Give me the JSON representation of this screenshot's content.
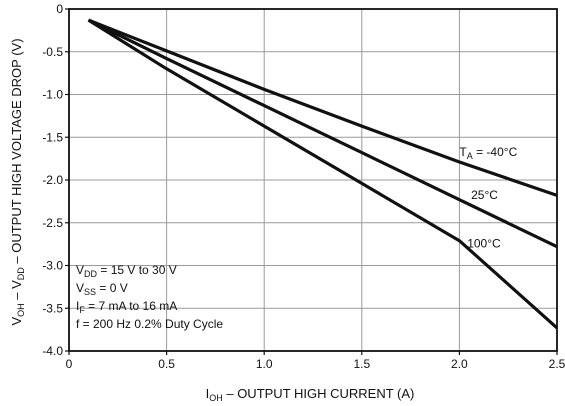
{
  "chart_data": {
    "type": "line",
    "xlabel": {
      "main": "I",
      "sub": "OH",
      "rest": " – OUTPUT HIGH CURRENT (A)"
    },
    "ylabel": {
      "p1": "V",
      "s1": "OH",
      "p2": " – V",
      "s2": "DD",
      "p3": " – OUTPUT HIGH VOLTAGE DROP (V)"
    },
    "xlim": [
      0,
      2.5
    ],
    "ylim": [
      -4.0,
      0
    ],
    "x_ticks": [
      "0",
      "0.5",
      "1.0",
      "1.5",
      "2.0",
      "2.5"
    ],
    "x_tick_values": [
      0,
      0.5,
      1.0,
      1.5,
      2.0,
      2.5
    ],
    "y_ticks": [
      "0",
      "-0.5",
      "-1.0",
      "-1.5",
      "-2.0",
      "-2.5",
      "-3.0",
      "-3.5",
      "-4.0"
    ],
    "y_tick_values": [
      0,
      -0.5,
      -1.0,
      -1.5,
      -2.0,
      -2.5,
      -3.0,
      -3.5,
      -4.0
    ],
    "grid": true,
    "series": [
      {
        "name_main": "T",
        "name_sub": "A",
        "name_rest": " = -40°C",
        "label_at": [
          2.0,
          -1.72
        ],
        "points": [
          [
            0.1,
            -0.13
          ],
          [
            0.5,
            -0.49
          ],
          [
            1.0,
            -0.94
          ],
          [
            1.5,
            -1.37
          ],
          [
            2.0,
            -1.79
          ],
          [
            2.5,
            -2.18
          ]
        ]
      },
      {
        "name_main": "25°C",
        "name_sub": "",
        "name_rest": "",
        "label_at": [
          2.06,
          -2.22
        ],
        "points": [
          [
            0.1,
            -0.13
          ],
          [
            0.5,
            -0.58
          ],
          [
            1.0,
            -1.13
          ],
          [
            1.5,
            -1.68
          ],
          [
            2.0,
            -2.23
          ],
          [
            2.5,
            -2.78
          ]
        ]
      },
      {
        "name_main": "100°C",
        "name_sub": "",
        "name_rest": "",
        "label_at": [
          2.04,
          -2.79
        ],
        "points": [
          [
            0.1,
            -0.13
          ],
          [
            0.5,
            -0.7
          ],
          [
            1.0,
            -1.37
          ],
          [
            1.5,
            -2.04
          ],
          [
            2.0,
            -2.71
          ],
          [
            2.5,
            -3.73
          ]
        ]
      }
    ],
    "conditions": [
      {
        "main": "V",
        "sub": "DD",
        "rest": " = 15 V to 30 V"
      },
      {
        "main": "V",
        "sub": "SS",
        "rest": " = 0 V"
      },
      {
        "main": "I",
        "sub": "F",
        "rest": " = 7 mA to 16 mA"
      },
      {
        "main": "f = 200 Hz 0.2% Duty Cycle",
        "sub": "",
        "rest": ""
      }
    ]
  }
}
